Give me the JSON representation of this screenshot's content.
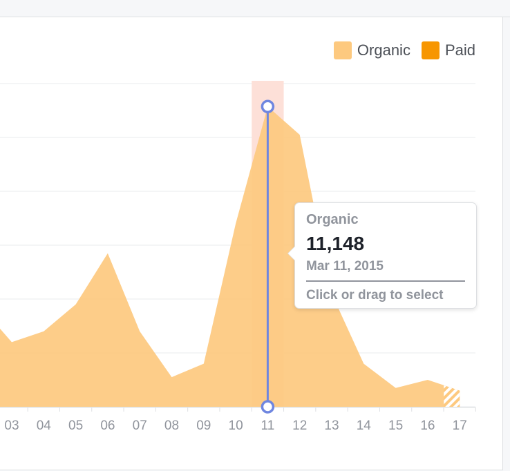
{
  "chart_data": {
    "type": "area",
    "categories": [
      "03",
      "04",
      "05",
      "06",
      "07",
      "08",
      "09",
      "10",
      "11",
      "12",
      "13",
      "14",
      "15",
      "16",
      "17"
    ],
    "series": [
      {
        "name": "Organic",
        "values": [
          2400,
          2800,
          3800,
          5700,
          2800,
          1100,
          1600,
          6800,
          11148,
          10100,
          4200,
          1600,
          700,
          1000,
          600
        ]
      },
      {
        "name": "Paid",
        "values": [
          0,
          0,
          0,
          0,
          0,
          0,
          0,
          0,
          0,
          0,
          0,
          0,
          0,
          0,
          0
        ]
      }
    ],
    "ylim": [
      0,
      12000
    ],
    "grid": true,
    "legend_position": "top-right",
    "highlighted_category": "11",
    "colors": {
      "organic": "#fdc97f",
      "paid": "#f79600",
      "highlight_band": "#fde0d8",
      "cursor": "#6f86e0"
    }
  },
  "legend": {
    "organic_label": "Organic",
    "paid_label": "Paid"
  },
  "tooltip": {
    "series": "Organic",
    "value": "11,148",
    "date": "Mar 11, 2015",
    "hint": "Click or drag to select"
  }
}
